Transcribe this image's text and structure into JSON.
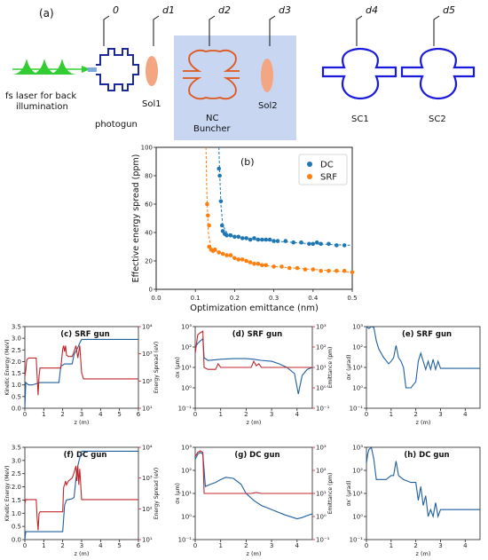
{
  "schematic": {
    "panel_label": "(a)",
    "distance_labels": [
      "0",
      "d1",
      "d2",
      "d3",
      "d4",
      "d5"
    ],
    "laser_label_line1": "fs laser for back",
    "laser_label_line2": "illumination",
    "photogun_label": "photogun",
    "sol1_label": "Sol1",
    "buncher_label_line1": "NC",
    "buncher_label_line2": "Buncher",
    "sol2_label": "Sol2",
    "sc1_label": "SC1",
    "sc2_label": "SC2",
    "colors": {
      "laser": "#32cd32",
      "solenoid": "#f4a582",
      "buncher": "#e0561b",
      "cavity": "#1a1adb",
      "shade": "#c8d6f2"
    }
  },
  "chart_data": [
    {
      "id": "b",
      "type": "scatter",
      "panel_label": "(b)",
      "xlabel": "Optimization emittance (nm)",
      "ylabel": "Effective energy spread (ppm)",
      "xlim": [
        0.0,
        0.5
      ],
      "ylim": [
        0,
        100
      ],
      "xticks": [
        "0.0",
        "0.1",
        "0.2",
        "0.3",
        "0.4",
        "0.5"
      ],
      "yticks": [
        "0",
        "20",
        "40",
        "60",
        "80",
        "100"
      ],
      "legend_position": "top-right",
      "series": [
        {
          "name": "DC",
          "color": "#1f77b4",
          "points": [
            [
              0.16,
              85
            ],
            [
              0.162,
              80
            ],
            [
              0.165,
              62
            ],
            [
              0.168,
              45
            ],
            [
              0.17,
              41
            ],
            [
              0.175,
              39
            ],
            [
              0.18,
              38
            ],
            [
              0.19,
              38
            ],
            [
              0.2,
              37
            ],
            [
              0.21,
              37
            ],
            [
              0.22,
              36
            ],
            [
              0.23,
              36
            ],
            [
              0.24,
              35
            ],
            [
              0.25,
              36
            ],
            [
              0.26,
              35
            ],
            [
              0.27,
              35
            ],
            [
              0.28,
              35
            ],
            [
              0.29,
              35
            ],
            [
              0.3,
              34
            ],
            [
              0.31,
              34
            ],
            [
              0.33,
              34
            ],
            [
              0.35,
              33
            ],
            [
              0.37,
              33
            ],
            [
              0.39,
              32
            ],
            [
              0.4,
              32
            ],
            [
              0.41,
              33
            ],
            [
              0.42,
              32
            ],
            [
              0.44,
              32
            ],
            [
              0.46,
              31
            ],
            [
              0.48,
              31
            ]
          ],
          "fit": [
            [
              0.16,
              100
            ],
            [
              0.161,
              90
            ],
            [
              0.165,
              60
            ],
            [
              0.17,
              45
            ],
            [
              0.18,
              40
            ],
            [
              0.2,
              37
            ],
            [
              0.25,
              35
            ],
            [
              0.3,
              34
            ],
            [
              0.35,
              33
            ],
            [
              0.4,
              32
            ],
            [
              0.45,
              31.5
            ],
            [
              0.5,
              31
            ]
          ]
        },
        {
          "name": "SRF",
          "color": "#ff7f0e",
          "points": [
            [
              0.13,
              60
            ],
            [
              0.132,
              52
            ],
            [
              0.135,
              45
            ],
            [
              0.135,
              30
            ],
            [
              0.14,
              28
            ],
            [
              0.145,
              27
            ],
            [
              0.15,
              28
            ],
            [
              0.16,
              26
            ],
            [
              0.17,
              25
            ],
            [
              0.18,
              24
            ],
            [
              0.19,
              24
            ],
            [
              0.2,
              22
            ],
            [
              0.21,
              21
            ],
            [
              0.22,
              21
            ],
            [
              0.23,
              20
            ],
            [
              0.24,
              19
            ],
            [
              0.25,
              18
            ],
            [
              0.26,
              18
            ],
            [
              0.27,
              17
            ],
            [
              0.28,
              17
            ],
            [
              0.3,
              16
            ],
            [
              0.32,
              16
            ],
            [
              0.34,
              15
            ],
            [
              0.36,
              15
            ],
            [
              0.38,
              14
            ],
            [
              0.4,
              14
            ],
            [
              0.42,
              13
            ],
            [
              0.44,
              13
            ],
            [
              0.46,
              13
            ],
            [
              0.48,
              13
            ],
            [
              0.5,
              12
            ]
          ],
          "fit": [
            [
              0.127,
              100
            ],
            [
              0.129,
              70
            ],
            [
              0.133,
              40
            ],
            [
              0.14,
              29
            ],
            [
              0.16,
              26
            ],
            [
              0.2,
              22
            ],
            [
              0.25,
              18
            ],
            [
              0.3,
              16
            ],
            [
              0.35,
              15
            ],
            [
              0.4,
              14
            ],
            [
              0.45,
              13
            ],
            [
              0.5,
              12
            ]
          ]
        }
      ]
    },
    {
      "id": "c",
      "type": "line",
      "panel_label": "(c) SRF gun",
      "xlabel": "z (m)",
      "ylabel": "Kinetic Energy (MeV)",
      "ylabel_right": "Energy Spread (eV)",
      "xlim": [
        0,
        6
      ],
      "ylim": [
        0,
        3.5
      ],
      "ylim_right": [
        10,
        10000
      ],
      "right_scale": "log",
      "xticks": [
        "0",
        "1",
        "2",
        "3",
        "4",
        "5",
        "6"
      ],
      "yticks": [
        "0.0",
        "0.5",
        "1.0",
        "1.5",
        "2.0",
        "2.5",
        "3.0",
        "3.5"
      ],
      "yticks_right": [
        "10¹",
        "10²",
        "10³",
        "10⁴"
      ],
      "series": [
        {
          "name": "Kinetic Energy",
          "color": "#1f5fa0",
          "axis": "left",
          "x": [
            0,
            0.05,
            0.2,
            0.4,
            0.6,
            0.8,
            1.0,
            1.8,
            1.9,
            2.0,
            2.1,
            2.2,
            2.5,
            2.6,
            2.8,
            2.9,
            3.0,
            6.0
          ],
          "y": [
            0.0,
            1.1,
            1.0,
            1.0,
            1.05,
            1.1,
            1.1,
            1.1,
            1.8,
            1.85,
            1.9,
            1.9,
            1.9,
            2.3,
            2.6,
            2.8,
            2.95,
            2.95
          ]
        },
        {
          "name": "Energy Spread",
          "color": "#c0272d",
          "axis": "right",
          "x": [
            0,
            0.05,
            0.1,
            0.2,
            0.4,
            0.6,
            0.65,
            0.7,
            0.75,
            0.8,
            1.0,
            1.5,
            1.9,
            2.0,
            2.05,
            2.1,
            2.15,
            2.2,
            2.3,
            2.5,
            2.6,
            2.7,
            2.8,
            2.9,
            3.0,
            3.1,
            6.0
          ],
          "y": [
            150,
            250,
            600,
            700,
            700,
            700,
            150,
            30,
            150,
            300,
            300,
            300,
            300,
            1500,
            2000,
            1200,
            2000,
            900,
            800,
            800,
            1200,
            2000,
            700,
            2000,
            200,
            120,
            120
          ]
        }
      ]
    },
    {
      "id": "d",
      "type": "line",
      "panel_label": "(d) SRF gun",
      "xlabel": "z (m)",
      "ylabel": "σx (μm)",
      "ylabel_right": "Emittance (pm)",
      "xlim": [
        0,
        4.6
      ],
      "ylim": [
        0.1,
        1000
      ],
      "ylim_right": [
        0.1,
        1000
      ],
      "left_scale": "log",
      "right_scale": "log",
      "xticks": [
        "0",
        "1",
        "2",
        "3",
        "4"
      ],
      "yticks": [
        "10⁻¹",
        "10⁰",
        "10¹",
        "10²",
        "10³"
      ],
      "yticks_right": [
        "10⁻¹",
        "10⁰",
        "10¹",
        "10²",
        "10³"
      ],
      "series": [
        {
          "name": "σx",
          "color": "#1f5fa0",
          "axis": "left",
          "x": [
            0,
            0.1,
            0.2,
            0.3,
            0.35,
            0.5,
            1.0,
            1.5,
            2.0,
            2.3,
            2.6,
            3.0,
            3.3,
            3.6,
            3.9,
            4.05,
            4.2,
            4.4,
            4.6
          ],
          "y": [
            100,
            150,
            200,
            250,
            30,
            22,
            25,
            27,
            27,
            25,
            22,
            20,
            15,
            10,
            5,
            0.5,
            4,
            8,
            10
          ]
        },
        {
          "name": "Emittance",
          "color": "#c0272d",
          "axis": "right",
          "x": [
            0,
            0.1,
            0.2,
            0.3,
            0.35,
            0.5,
            0.8,
            0.9,
            1.0,
            1.5,
            2.0,
            2.2,
            2.3,
            2.4,
            2.5,
            2.6,
            2.8,
            3.0,
            4.6
          ],
          "y": [
            50,
            400,
            500,
            600,
            10,
            8,
            8,
            15,
            10,
            10,
            10,
            10,
            20,
            12,
            15,
            10,
            10,
            10,
            10
          ]
        }
      ]
    },
    {
      "id": "e",
      "type": "line",
      "panel_label": "(e) SRF gun",
      "xlabel": "z (m)",
      "ylabel": "σx′ (μrad)",
      "xlim": [
        0,
        4.6
      ],
      "ylim": [
        0.1,
        1000
      ],
      "left_scale": "log",
      "xticks": [
        "0",
        "1",
        "2",
        "3",
        "4"
      ],
      "yticks": [
        "10⁻¹",
        "10⁰",
        "10¹",
        "10²",
        "10³"
      ],
      "series": [
        {
          "name": "σx′",
          "color": "#1f5fa0",
          "axis": "left",
          "x": [
            0,
            0.1,
            0.2,
            0.3,
            0.4,
            0.5,
            0.7,
            0.9,
            1.0,
            1.1,
            1.2,
            1.3,
            1.4,
            1.5,
            1.6,
            1.8,
            2.0,
            2.1,
            2.2,
            2.3,
            2.4,
            2.5,
            2.6,
            2.7,
            2.8,
            2.9,
            3.0,
            4.6
          ],
          "y": [
            1000,
            800,
            1000,
            900,
            200,
            80,
            30,
            15,
            20,
            30,
            120,
            30,
            20,
            10,
            1,
            1,
            2,
            20,
            50,
            20,
            8,
            20,
            8,
            25,
            8,
            20,
            9,
            9
          ]
        }
      ]
    },
    {
      "id": "f",
      "type": "line",
      "panel_label": "(f) DC gun",
      "xlabel": "z (m)",
      "ylabel": "Kinetic Energy (MeV)",
      "ylabel_right": "Energy Spread (eV)",
      "xlim": [
        0,
        6
      ],
      "ylim": [
        0,
        3.5
      ],
      "ylim_right": [
        10,
        10000
      ],
      "right_scale": "log",
      "xticks": [
        "0",
        "1",
        "2",
        "3",
        "4",
        "5",
        "6"
      ],
      "yticks": [
        "0.0",
        "0.5",
        "1.0",
        "1.5",
        "2.0",
        "2.5",
        "3.0",
        "3.5"
      ],
      "yticks_right": [
        "10¹",
        "10²",
        "10³",
        "10⁴"
      ],
      "series": [
        {
          "name": "Kinetic Energy",
          "color": "#1f5fa0",
          "axis": "left",
          "x": [
            0,
            0.05,
            0.3,
            0.6,
            1.0,
            1.5,
            2.0,
            2.1,
            2.2,
            2.5,
            2.6,
            2.7,
            2.8,
            2.9,
            3.0,
            6.0
          ],
          "y": [
            0.0,
            0.3,
            0.3,
            0.3,
            0.3,
            0.3,
            0.3,
            1.3,
            1.5,
            1.55,
            1.6,
            2.3,
            2.8,
            3.1,
            3.35,
            3.35
          ]
        },
        {
          "name": "Energy Spread",
          "color": "#c0272d",
          "axis": "right",
          "x": [
            0,
            0.05,
            0.3,
            0.6,
            0.65,
            0.7,
            0.75,
            0.8,
            1.0,
            1.5,
            2.0,
            2.05,
            2.1,
            2.15,
            2.2,
            2.3,
            2.5,
            2.6,
            2.7,
            2.75,
            2.8,
            2.85,
            2.9,
            3.0,
            6.0
          ],
          "y": [
            150,
            200,
            200,
            200,
            50,
            20,
            70,
            80,
            80,
            80,
            80,
            500,
            600,
            800,
            600,
            800,
            1000,
            1500,
            2500,
            800,
            2500,
            600,
            2000,
            200,
            200
          ]
        }
      ]
    },
    {
      "id": "g",
      "type": "line",
      "panel_label": "(g) DC gun",
      "xlabel": "z (m)",
      "ylabel": "σx (μm)",
      "ylabel_right": "Emittance (pm)",
      "xlim": [
        0,
        4.6
      ],
      "ylim": [
        0.1,
        1000
      ],
      "ylim_right": [
        0.1,
        1000
      ],
      "left_scale": "log",
      "right_scale": "log",
      "xticks": [
        "0",
        "1",
        "2",
        "3",
        "4"
      ],
      "yticks": [
        "10⁻¹",
        "10⁰",
        "10¹",
        "10²",
        "10³"
      ],
      "yticks_right": [
        "10⁻¹",
        "10⁰",
        "10¹",
        "10²",
        "10³"
      ],
      "series": [
        {
          "name": "σx",
          "color": "#1f5fa0",
          "axis": "left",
          "x": [
            0,
            0.1,
            0.2,
            0.3,
            0.4,
            0.6,
            0.8,
            1.0,
            1.2,
            1.5,
            1.8,
            2.0,
            2.3,
            2.6,
            3.0,
            3.5,
            4.0,
            4.2,
            4.4,
            4.6
          ],
          "y": [
            300,
            500,
            600,
            500,
            20,
            25,
            30,
            40,
            50,
            45,
            25,
            10,
            5,
            3,
            2,
            1.2,
            0.8,
            0.9,
            1.1,
            1.3
          ]
        },
        {
          "name": "Emittance",
          "color": "#c0272d",
          "axis": "right",
          "x": [
            0,
            0.1,
            0.2,
            0.3,
            0.35,
            0.5,
            0.8,
            1.0,
            1.5,
            2.0,
            2.2,
            2.4,
            2.6,
            3.0,
            4.6
          ],
          "y": [
            400,
            600,
            700,
            600,
            10,
            10,
            10,
            10,
            10,
            10,
            10,
            11,
            10,
            10,
            10
          ]
        }
      ]
    },
    {
      "id": "h",
      "type": "line",
      "panel_label": "(h) DC gun",
      "xlabel": "z (m)",
      "ylabel": "σx′ (μrad)",
      "xlim": [
        0,
        4.6
      ],
      "ylim": [
        0.1,
        1000
      ],
      "left_scale": "log",
      "xticks": [
        "0",
        "1",
        "2",
        "3",
        "4"
      ],
      "yticks": [
        "10⁻¹",
        "10⁰",
        "10¹",
        "10²",
        "10³"
      ],
      "series": [
        {
          "name": "σx′",
          "color": "#1f5fa0",
          "axis": "left",
          "x": [
            0,
            0.05,
            0.1,
            0.2,
            0.3,
            0.4,
            0.6,
            0.8,
            1.0,
            1.1,
            1.2,
            1.3,
            1.5,
            1.8,
            2.0,
            2.1,
            2.2,
            2.3,
            2.4,
            2.5,
            2.6,
            2.7,
            2.8,
            2.9,
            3.0,
            4.6
          ],
          "y": [
            200,
            500,
            800,
            1000,
            300,
            40,
            40,
            40,
            60,
            60,
            250,
            60,
            40,
            30,
            30,
            5,
            20,
            3,
            8,
            1,
            2,
            1,
            4,
            1,
            2,
            2
          ]
        }
      ]
    }
  ]
}
